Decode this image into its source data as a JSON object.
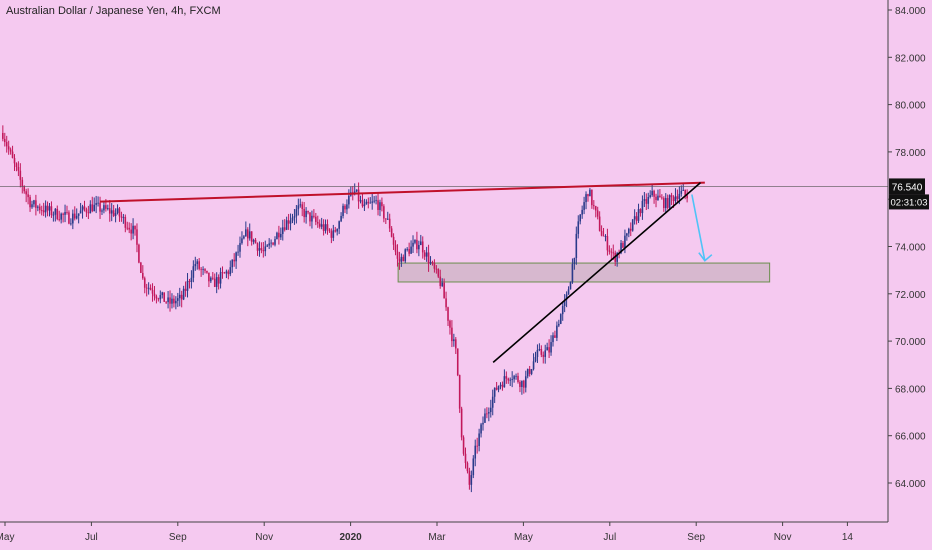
{
  "header": {
    "title": "Australian Dollar / Japanese Yen, 4h, FXCM"
  },
  "colors": {
    "background": "#f5c9f0",
    "up_candle": "#2a3a8a",
    "down_candle": "#c2185b",
    "resistance_line": "#c0112b",
    "trend_line": "#000000",
    "arrow": "#4fc3f7",
    "zone_fill": "#d7b8cf",
    "zone_border": "#6b8e4e",
    "price_tag": "#111111",
    "axis_text": "#333333"
  },
  "price_tag": {
    "value": "76.540",
    "countdown": "02:31:03"
  },
  "chart_data": {
    "type": "line",
    "title": "Australian Dollar / Japanese Yen, 4h, FXCM",
    "xlabel": "",
    "ylabel": "",
    "ylim": [
      62.2,
      84.7
    ],
    "y_ticks": [
      "84.000",
      "82.000",
      "80.000",
      "78.000",
      "76.000",
      "74.000",
      "72.000",
      "70.000",
      "68.000",
      "66.000",
      "64.000"
    ],
    "x_ticks": [
      "May",
      "Jul",
      "Sep",
      "Nov",
      "2020",
      "Mar",
      "May",
      "Jul",
      "Sep",
      "Nov",
      "14"
    ],
    "x_months": [
      0,
      2,
      4,
      6,
      8,
      10,
      12,
      14,
      16,
      18,
      19.5
    ],
    "series": [
      {
        "x": [
          -0.05,
          0.1,
          0.35,
          0.6,
          1.0,
          1.5,
          2.0,
          2.6,
          3.0,
          3.2,
          3.5,
          3.8,
          4.1,
          4.4,
          4.8,
          5.2,
          5.6,
          6.0,
          6.4,
          6.8,
          7.2,
          7.6,
          7.9,
          8.1,
          8.3,
          8.6,
          8.9,
          9.1,
          9.3,
          9.6,
          9.9,
          10.1,
          10.3,
          10.45,
          10.6,
          10.75,
          10.9,
          11.1,
          11.4,
          11.7,
          12.0,
          12.3,
          12.6,
          12.8,
          13.0,
          13.1,
          13.3,
          13.5,
          13.8,
          14.1,
          14.4,
          14.7,
          15.0,
          15.3,
          15.6,
          15.8
        ],
        "y": [
          78.8,
          78.0,
          76.8,
          75.8,
          75.5,
          75.2,
          75.7,
          75.4,
          74.6,
          72.5,
          72.0,
          71.6,
          71.8,
          73.3,
          72.4,
          73.0,
          74.6,
          73.7,
          74.8,
          75.6,
          75.0,
          74.5,
          75.9,
          76.3,
          75.6,
          75.9,
          74.9,
          73.3,
          73.8,
          74.2,
          73.1,
          72.4,
          70.6,
          69.4,
          65.3,
          63.9,
          65.5,
          66.8,
          68.1,
          68.6,
          68.2,
          69.4,
          69.6,
          70.8,
          71.8,
          72.8,
          75.2,
          76.4,
          74.6,
          73.5,
          74.4,
          75.6,
          76.2,
          75.8,
          76.3,
          76.1
        ]
      }
    ],
    "annotations": [
      {
        "type": "resistance_line",
        "x": [
          2.2,
          16.2
        ],
        "y": [
          75.9,
          76.7
        ]
      },
      {
        "type": "trend_line",
        "x": [
          11.3,
          16.1
        ],
        "y": [
          69.1,
          76.7
        ]
      },
      {
        "type": "zone",
        "x": [
          9.1,
          17.7
        ],
        "y": [
          72.5,
          73.3
        ]
      },
      {
        "type": "arrow",
        "x": [
          15.9,
          16.2
        ],
        "y": [
          76.2,
          73.4
        ]
      },
      {
        "type": "hline",
        "y": 76.54
      }
    ],
    "grid": false,
    "legend": "none"
  }
}
